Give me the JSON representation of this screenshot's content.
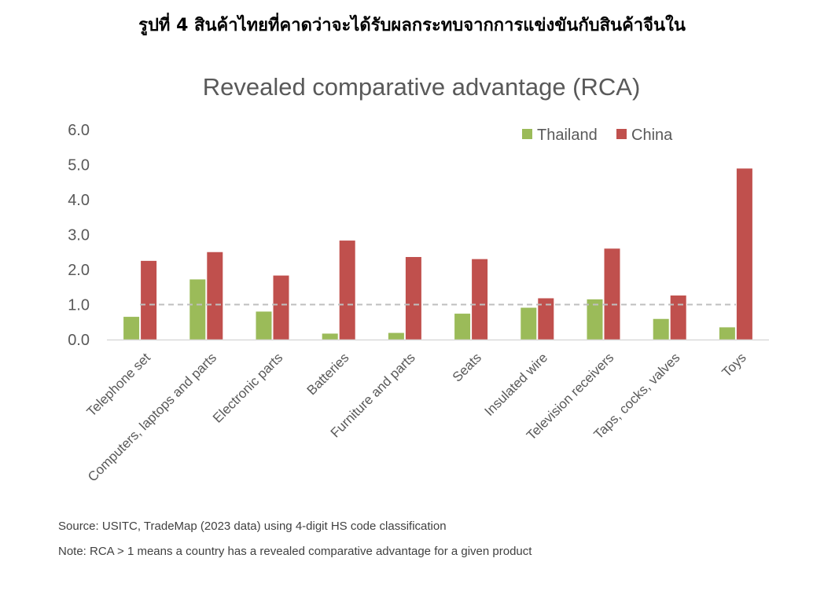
{
  "heading": "รูปที่ 4 สินค้าไทยที่คาดว่าจะได้รับผลกระทบจากการแข่งขันกับสินค้าจีนใน",
  "source": "Source: USITC, TradeMap (2023 data) using 4-digit HS code classification",
  "note": "Note: RCA > 1 means a country has a revealed comparative advantage for a given product",
  "chart_data": {
    "type": "bar",
    "title": "Revealed comparative advantage (RCA)",
    "xlabel": "",
    "ylabel": "",
    "ylim": [
      0,
      6
    ],
    "yticks": [
      "0.0",
      "1.0",
      "2.0",
      "3.0",
      "4.0",
      "5.0",
      "6.0"
    ],
    "grid": false,
    "legend_position": "top-right",
    "reference_line": 1.0,
    "categories": [
      "Telephone set",
      "Computers, laptops and parts",
      "Electronic parts",
      "Batteries",
      "Furniture and parts",
      "Seats",
      "Insulated wire",
      "Television receivers",
      "Taps, cocks, valves",
      "Toys"
    ],
    "series": [
      {
        "name": "Thailand",
        "color": "#9BBB59",
        "values": [
          0.65,
          1.72,
          0.8,
          0.17,
          0.19,
          0.74,
          0.91,
          1.15,
          0.59,
          0.35
        ]
      },
      {
        "name": "China",
        "color": "#C0504D",
        "values": [
          2.25,
          2.5,
          1.83,
          2.83,
          2.36,
          2.3,
          1.18,
          2.6,
          1.26,
          4.89
        ]
      }
    ],
    "colors": {
      "axis": "#d9d9d9",
      "reference_line": "#bfbfbf",
      "text": "#595959"
    }
  }
}
